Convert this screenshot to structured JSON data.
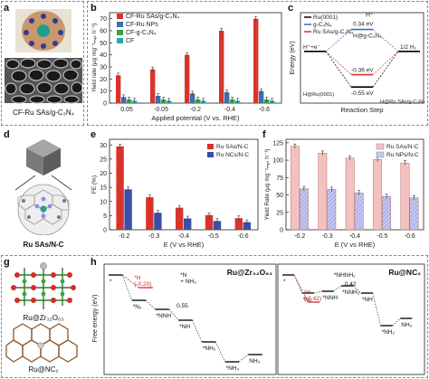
{
  "panels": {
    "a": {
      "label": "a",
      "caption": "CF-Ru SAs/g-C₃N₄"
    },
    "b": {
      "label": "b"
    },
    "c": {
      "label": "c"
    },
    "d": {
      "label": "d",
      "caption": "Ru SAs/N-C"
    },
    "e": {
      "label": "e"
    },
    "f": {
      "label": "f"
    },
    "g": {
      "label": "g",
      "caption_top": "Ru@Zr₃₂O₆₃",
      "caption_bottom": "Ru@NC₂"
    },
    "h": {
      "label": "h"
    }
  },
  "chart_data": [
    {
      "id": "b",
      "type": "bar",
      "categories": [
        "0.05",
        "-0.05",
        "-0.2",
        "-0.4",
        "-0.6"
      ],
      "series": [
        {
          "name": "CF-Ru SAs/g-C₃N₄",
          "values": [
            23,
            28,
            40,
            60,
            70
          ],
          "color": "#d9342b"
        },
        {
          "name": "CF-Ru NPs",
          "values": [
            5,
            6,
            8,
            9,
            10
          ],
          "color": "#3a6fb0"
        },
        {
          "name": "CF-g-C₃N₄",
          "values": [
            3,
            3,
            3,
            3,
            3
          ],
          "color": "#3aa33a"
        },
        {
          "name": "CF",
          "values": [
            2,
            2,
            2,
            2,
            2
          ],
          "color": "#2aa7a7"
        }
      ],
      "ylabel": "Yield rate (μg mg⁻¹ₘₑₜ h⁻¹)",
      "xlabel": "Applied potential (V vs. RHE)",
      "ylim": [
        0,
        75
      ],
      "yticks": [
        "0",
        "10",
        "20",
        "30",
        "40",
        "50",
        "60",
        "70"
      ]
    },
    {
      "id": "c",
      "type": "line",
      "legend": [
        "Ru(0001)",
        "g-C₃N₄",
        "Ru SAs/g-C₃N₄"
      ],
      "colors": [
        "#000000",
        "#3a6fb0",
        "#d9342b"
      ],
      "ylabel": "Energy (eV)",
      "xlabel": "Reaction Step",
      "labels": {
        "start": "H⁺+e⁻",
        "end": "1/2 H₂",
        "hplus": "H⁺",
        "e1": "0.34 eV",
        "s1": "H@g-C₃N₄",
        "e2": "-0.36 eV",
        "e3": "-0.55 eV",
        "s2": "H@Ru(0001)",
        "s3": "H@Ru SAs/g-C₃N₄"
      }
    },
    {
      "id": "e",
      "type": "bar",
      "categories": [
        "-0.2",
        "-0.3",
        "-0.4",
        "-0.5",
        "-0.6"
      ],
      "series": [
        {
          "name": "Ru SAs/N-C",
          "values": [
            29.5,
            11.5,
            7.8,
            5.2,
            4.1
          ],
          "color": "#d9342b"
        },
        {
          "name": "Ru NCs/N-C",
          "values": [
            14.3,
            6.0,
            4.0,
            3.1,
            2.7
          ],
          "color": "#3a4fa8"
        }
      ],
      "ylabel": "FE (%)",
      "xlabel": "E (V vs RHE)",
      "ylim": [
        0,
        32
      ],
      "yticks": [
        "0",
        "5",
        "10",
        "15",
        "20",
        "25",
        "30"
      ]
    },
    {
      "id": "f",
      "type": "bar",
      "categories": [
        "-0.2",
        "-0.3",
        "-0.4",
        "-0.5",
        "-0.6"
      ],
      "series": [
        {
          "name": "Ru SAs/N-C",
          "values": [
            120,
            110,
            103,
            101,
            96
          ],
          "color": "#f4c1c1"
        },
        {
          "name": "Ru NPs/N-C",
          "values": [
            59,
            58,
            53,
            48,
            46
          ],
          "color": "#c7c9ef"
        }
      ],
      "ylabel": "Yield Rate (μg mg⁻¹ₘₑₜ h⁻¹)",
      "xlabel": "E (V vs RHE)",
      "ylim": [
        0,
        130
      ],
      "yticks": [
        "0",
        "25",
        "50",
        "75",
        "100",
        "125"
      ]
    },
    {
      "id": "h",
      "type": "line",
      "ylabel": "Free energy (eV)",
      "plots": [
        {
          "title": "Ru@Zr₃₂O₆₃",
          "steps": [
            "*",
            "*N₂",
            "*NNH",
            "*NH",
            "*NH₂",
            "*NH₃",
            "NH₃"
          ],
          "annotations": [
            "*H",
            "(-0.20)",
            "*N",
            "+ NH₃",
            "0.55"
          ]
        },
        {
          "title": "Ru@NC₂",
          "steps": [
            "*",
            "*N₂",
            "*NNH",
            "*NNH₂",
            "*NH",
            "*NH₂",
            "NH₃"
          ],
          "annotations": [
            "*H",
            "(-0.42)",
            "0.42",
            "*NHNH₂"
          ]
        }
      ]
    }
  ]
}
